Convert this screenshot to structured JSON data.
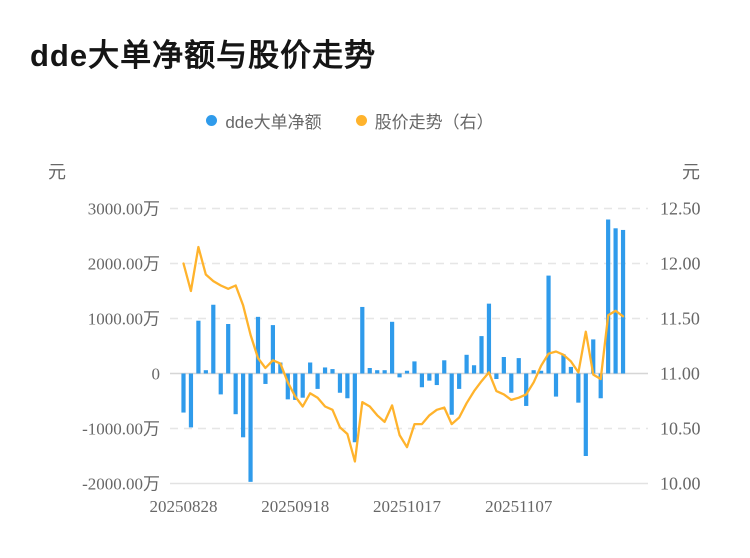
{
  "title": "dde大单净额与股价走势",
  "legend": {
    "items": [
      {
        "name": "net-amount-series",
        "label": "dde大单净额",
        "color": "#2f9beb"
      },
      {
        "name": "price-series",
        "label": "股价走势（右）",
        "color": "#ffb32c"
      }
    ]
  },
  "left_axis": {
    "unit": "元",
    "tick_labels": [
      "3000.00万",
      "2000.00万",
      "1000.00万",
      "0",
      "-1000.00万",
      "-2000.00万"
    ],
    "tick_values_wan": [
      3000,
      2000,
      1000,
      0,
      -1000,
      -2000
    ]
  },
  "right_axis": {
    "unit": "元",
    "tick_labels": [
      "12.50",
      "12.00",
      "11.50",
      "11.00",
      "10.50",
      "10.00"
    ],
    "tick_values": [
      12.5,
      12.0,
      11.5,
      11.0,
      10.5,
      10.0
    ]
  },
  "x_axis": {
    "tick_labels": [
      "20250828",
      "20250918",
      "20251017",
      "20251107"
    ],
    "tick_indices": [
      0,
      15,
      30,
      45
    ]
  },
  "chart_data": {
    "type": [
      "bar",
      "line"
    ],
    "title": "dde大单净额与股价走势",
    "n_points": 60,
    "x_tick_labels": [
      "20250828",
      "20250918",
      "20251017",
      "20251107"
    ],
    "legend_position": "top-center",
    "grid": "dashed-horizontal",
    "series": [
      {
        "name": "dde大单净额",
        "type": "bar",
        "axis": "left",
        "unit": "万元",
        "color": "#2f9beb",
        "axis_range_wan": [
          -2000,
          3000
        ],
        "values": [
          -710,
          -980,
          960,
          60,
          1250,
          -380,
          900,
          -740,
          -1160,
          -1970,
          1030,
          -190,
          880,
          200,
          -470,
          -480,
          -440,
          200,
          -280,
          110,
          80,
          -350,
          -450,
          -1250,
          1210,
          100,
          60,
          60,
          940,
          -70,
          50,
          220,
          -250,
          -130,
          -210,
          240,
          -750,
          -280,
          340,
          150,
          680,
          1270,
          -100,
          300,
          -350,
          280,
          -590,
          60,
          50,
          1780,
          -420,
          350,
          120,
          -530,
          -1500,
          620,
          -450,
          2800,
          2640,
          2610
        ]
      },
      {
        "name": "股价走势（右）",
        "type": "line",
        "axis": "right",
        "unit": "元",
        "color": "#ffb32c",
        "axis_range": [
          10.0,
          12.5
        ],
        "values": [
          12.0,
          11.75,
          12.15,
          11.9,
          11.84,
          11.8,
          11.77,
          11.8,
          11.62,
          11.35,
          11.14,
          11.05,
          11.12,
          11.09,
          10.92,
          10.79,
          10.7,
          10.82,
          10.78,
          10.7,
          10.67,
          10.51,
          10.45,
          10.2,
          10.74,
          10.7,
          10.62,
          10.56,
          10.71,
          10.44,
          10.33,
          10.54,
          10.54,
          10.62,
          10.67,
          10.69,
          10.54,
          10.6,
          10.73,
          10.84,
          10.93,
          11.01,
          10.84,
          10.81,
          10.76,
          10.78,
          10.81,
          10.92,
          11.07,
          11.18,
          11.2,
          11.17,
          11.11,
          11.01,
          11.38,
          10.99,
          10.95,
          11.53,
          11.57,
          11.52
        ]
      }
    ]
  }
}
